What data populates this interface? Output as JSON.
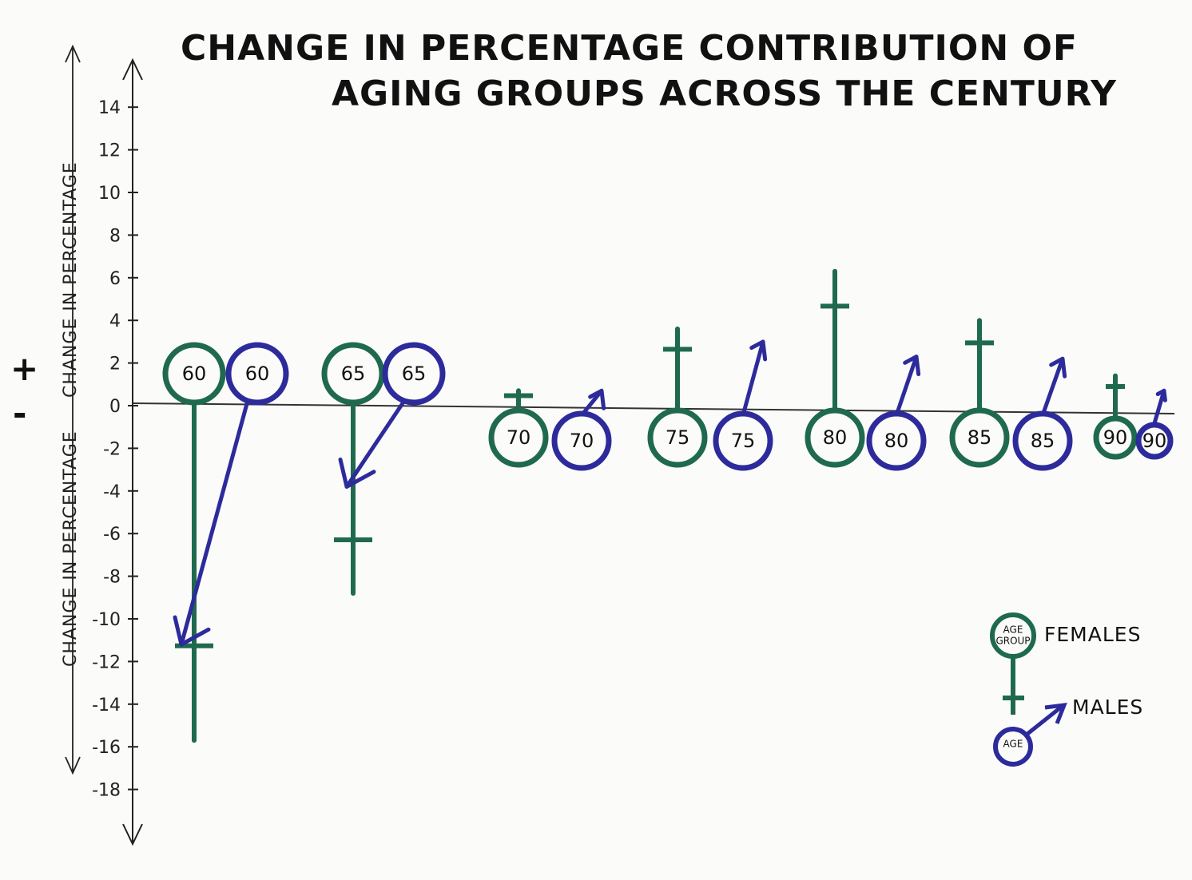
{
  "chart_data": {
    "type": "bar",
    "title": [
      "CHANGE IN PERCENTAGE CONTRIBUTION OF",
      "AGING GROUPS ACROSS THE CENTURY"
    ],
    "ylabel": "CHANGE IN PERCENTAGE",
    "ylim": [
      -18,
      14
    ],
    "yticks": [
      14,
      12,
      10,
      8,
      6,
      4,
      2,
      0,
      -2,
      -4,
      -6,
      -8,
      -10,
      -12,
      -14,
      -16,
      -18
    ],
    "ytick_labels": [
      "14",
      "12",
      "10",
      "8",
      "6",
      "4",
      "2",
      "0",
      "-2",
      "-4",
      "-6",
      "-8",
      "-10",
      "-12",
      "-14",
      "-16",
      "-18"
    ],
    "categories": [
      "60",
      "65",
      "70",
      "75",
      "80",
      "85",
      "90"
    ],
    "series": [
      {
        "name": "FEMALES",
        "values": [
          -15.7,
          -8.8,
          0.7,
          3.6,
          6.3,
          4.0,
          1.4
        ]
      },
      {
        "name": "MALES",
        "values": [
          -11.2,
          -3.8,
          0.7,
          3.0,
          2.3,
          2.2,
          0.7
        ]
      }
    ],
    "legend": {
      "position": "bottom-right",
      "female_symbol_text": [
        "AGE",
        "GROUP"
      ],
      "male_symbol_text": "AGE"
    },
    "signs": {
      "positive": "+",
      "negative": "-"
    },
    "colors": {
      "females": "#1f6a4e",
      "males": "#2d2b9b",
      "axis": "#222222"
    }
  }
}
